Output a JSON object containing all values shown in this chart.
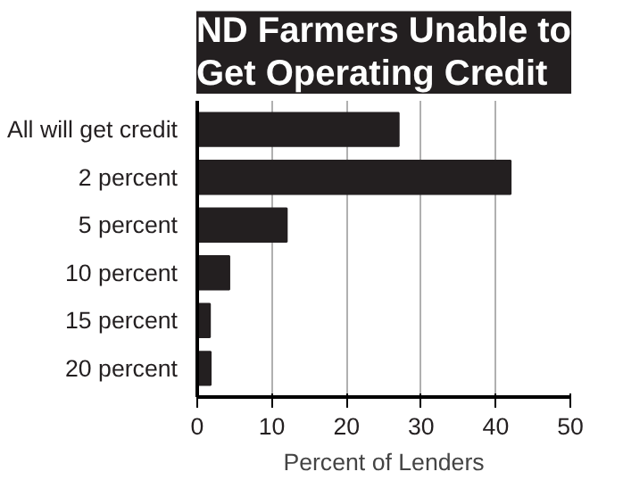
{
  "chart_data": {
    "type": "bar",
    "orientation": "horizontal",
    "title": "ND Farmers Unable to\nGet Operating Credit",
    "xlabel": "Percent of Lenders",
    "categories": [
      "All will get credit",
      "2 percent",
      "5 percent",
      "10 percent",
      "15 percent",
      "20 percent"
    ],
    "values": [
      27,
      42,
      12,
      4.3,
      1.7,
      1.8
    ],
    "color": "#231f20",
    "xlim": [
      0,
      50
    ],
    "xticks": [
      0,
      10,
      20,
      30,
      40,
      50
    ],
    "grid": "x"
  }
}
